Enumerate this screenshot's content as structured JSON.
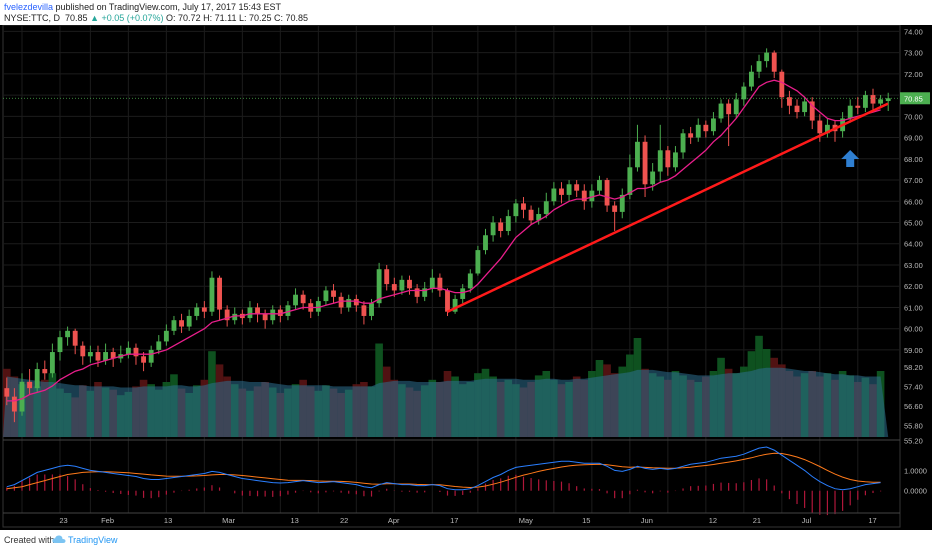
{
  "header": {
    "author": "fvelezdevilla",
    "published": "published on TradingView.com, July 17, 2017 15:43 EST",
    "symbol": "NYSE:TTC, D",
    "last": "70.85",
    "change": "▲ +0.05 (+0.07%)",
    "ohlc_open": "O: 70.72",
    "ohlc_high": "H: 71.11",
    "ohlc_low": "L: 70.25",
    "ohlc_close": "C: 70.85"
  },
  "footer": {
    "created_with": "Created with",
    "brand": "TradingView"
  },
  "colors": {
    "background": "#000000",
    "up_candle": "#4caf50",
    "down_candle": "#ef5350",
    "ma_line": "#e91e8c",
    "trendline": "#ff1a1a",
    "arrow": "#2f7fd1",
    "last_price_badge": "#4caf50",
    "macd_line": "#2a7fff",
    "signal_line": "#ff7a1a",
    "histogram": "#b0173a"
  },
  "chart_data": {
    "type": "candlestick",
    "price_axis_ticks": [
      "74.00",
      "73.00",
      "72.00",
      "71.00",
      "70.00",
      "69.00",
      "68.00",
      "67.00",
      "66.00",
      "65.00",
      "64.00",
      "63.00",
      "62.00",
      "61.00",
      "60.00",
      "59.00",
      "58.20",
      "57.40",
      "56.60",
      "55.80",
      "55.20"
    ],
    "last_price_label": "70.85",
    "macd_axis_ticks": [
      "1.0000",
      "0.0000"
    ],
    "x_ticks": [
      "23",
      "Feb",
      "13",
      "Mar",
      "13",
      "22",
      "Apr",
      "17",
      "May",
      "15",
      "Jun",
      "12",
      "21",
      "Jul",
      "17"
    ],
    "price_ylim": [
      54.9,
      74.3
    ],
    "candles": [
      [
        57.2,
        56.8,
        57.7,
        56.4
      ],
      [
        56.8,
        56.1,
        57.2,
        55.6
      ],
      [
        56.1,
        57.5,
        57.9,
        55.9
      ],
      [
        57.5,
        57.2,
        58.1,
        56.9
      ],
      [
        57.2,
        58.1,
        58.4,
        57.0
      ],
      [
        58.1,
        57.9,
        58.5,
        57.6
      ],
      [
        57.9,
        58.9,
        59.3,
        57.7
      ],
      [
        58.9,
        59.6,
        59.9,
        58.5
      ],
      [
        59.6,
        59.9,
        60.1,
        59.2
      ],
      [
        59.9,
        59.2,
        60.0,
        58.8
      ],
      [
        59.2,
        58.7,
        59.4,
        58.3
      ],
      [
        58.7,
        58.9,
        59.2,
        58.4
      ],
      [
        58.9,
        58.5,
        59.2,
        58.2
      ],
      [
        58.5,
        58.9,
        59.3,
        58.3
      ],
      [
        58.9,
        58.6,
        59.1,
        58.2
      ],
      [
        58.6,
        58.8,
        59.2,
        58.4
      ],
      [
        58.8,
        59.1,
        59.4,
        58.6
      ],
      [
        59.1,
        58.7,
        59.3,
        58.3
      ],
      [
        58.7,
        58.4,
        58.9,
        58.0
      ],
      [
        58.4,
        59.0,
        59.2,
        58.2
      ],
      [
        59.0,
        59.4,
        59.7,
        58.8
      ],
      [
        59.4,
        59.9,
        60.2,
        59.2
      ],
      [
        59.9,
        60.4,
        60.6,
        59.7
      ],
      [
        60.4,
        60.1,
        60.7,
        59.8
      ],
      [
        60.1,
        60.6,
        60.9,
        59.9
      ],
      [
        60.6,
        61.0,
        61.2,
        60.4
      ],
      [
        61.0,
        60.8,
        61.3,
        60.5
      ],
      [
        60.8,
        62.4,
        62.7,
        60.6
      ],
      [
        62.4,
        60.9,
        62.5,
        60.4
      ],
      [
        60.9,
        60.4,
        61.1,
        60.1
      ],
      [
        60.4,
        60.7,
        61.0,
        60.2
      ],
      [
        60.7,
        60.5,
        60.9,
        60.2
      ],
      [
        60.5,
        61.0,
        61.3,
        60.3
      ],
      [
        61.0,
        60.7,
        61.2,
        60.3
      ],
      [
        60.7,
        60.4,
        60.9,
        60.0
      ],
      [
        60.4,
        60.9,
        61.1,
        60.2
      ],
      [
        60.9,
        60.6,
        61.1,
        60.3
      ],
      [
        60.6,
        61.1,
        61.3,
        60.4
      ],
      [
        61.1,
        61.6,
        61.9,
        60.9
      ],
      [
        61.6,
        61.2,
        61.8,
        60.9
      ],
      [
        61.2,
        60.8,
        61.4,
        60.5
      ],
      [
        60.8,
        61.3,
        61.5,
        60.6
      ],
      [
        61.3,
        61.8,
        62.0,
        61.1
      ],
      [
        61.8,
        61.5,
        62.1,
        61.2
      ],
      [
        61.5,
        61.0,
        61.7,
        60.7
      ],
      [
        61.0,
        61.4,
        61.6,
        60.8
      ],
      [
        61.4,
        61.1,
        61.6,
        60.8
      ],
      [
        61.1,
        60.6,
        61.3,
        60.2
      ],
      [
        60.6,
        61.2,
        61.4,
        60.4
      ],
      [
        61.2,
        62.8,
        63.1,
        61.0
      ],
      [
        62.8,
        62.1,
        63.0,
        61.8
      ],
      [
        62.1,
        61.8,
        62.4,
        61.5
      ],
      [
        61.8,
        62.3,
        62.5,
        61.6
      ],
      [
        62.3,
        61.9,
        62.5,
        61.6
      ],
      [
        61.9,
        61.5,
        62.1,
        61.2
      ],
      [
        61.5,
        61.9,
        62.2,
        61.3
      ],
      [
        61.9,
        62.4,
        62.8,
        61.7
      ],
      [
        62.4,
        61.8,
        62.6,
        61.5
      ],
      [
        61.8,
        60.8,
        61.9,
        60.6
      ],
      [
        60.8,
        61.4,
        61.6,
        60.7
      ],
      [
        61.4,
        61.9,
        62.1,
        61.2
      ],
      [
        61.9,
        62.6,
        62.8,
        61.7
      ],
      [
        62.6,
        63.7,
        63.9,
        62.5
      ],
      [
        63.7,
        64.4,
        64.7,
        63.5
      ],
      [
        64.4,
        65.0,
        65.3,
        64.1
      ],
      [
        65.0,
        64.6,
        65.2,
        64.3
      ],
      [
        64.6,
        65.3,
        65.6,
        64.4
      ],
      [
        65.3,
        65.9,
        66.1,
        65.0
      ],
      [
        65.9,
        65.6,
        66.2,
        65.2
      ],
      [
        65.6,
        65.1,
        65.8,
        64.9
      ],
      [
        65.1,
        65.4,
        65.7,
        64.9
      ],
      [
        65.4,
        66.0,
        66.4,
        65.2
      ],
      [
        66.0,
        66.6,
        66.9,
        65.8
      ],
      [
        66.6,
        66.3,
        66.9,
        65.9
      ],
      [
        66.3,
        66.8,
        67.0,
        66.0
      ],
      [
        66.8,
        66.5,
        67.0,
        66.2
      ],
      [
        66.5,
        66.0,
        66.8,
        65.6
      ],
      [
        66.0,
        66.5,
        66.8,
        65.7
      ],
      [
        66.5,
        67.0,
        67.2,
        66.3
      ],
      [
        67.0,
        65.8,
        67.1,
        65.5
      ],
      [
        65.8,
        65.5,
        66.0,
        64.6
      ],
      [
        65.5,
        66.3,
        66.6,
        65.2
      ],
      [
        66.3,
        67.6,
        68.2,
        66.1
      ],
      [
        67.6,
        68.8,
        69.6,
        67.4
      ],
      [
        68.8,
        66.8,
        69.1,
        66.2
      ],
      [
        66.8,
        67.4,
        67.8,
        66.5
      ],
      [
        67.4,
        68.4,
        69.6,
        66.9
      ],
      [
        68.4,
        67.6,
        68.6,
        67.2
      ],
      [
        67.6,
        68.3,
        68.6,
        67.4
      ],
      [
        68.3,
        69.2,
        69.4,
        68.0
      ],
      [
        69.2,
        69.0,
        69.5,
        68.7
      ],
      [
        69.0,
        69.6,
        69.9,
        68.8
      ],
      [
        69.6,
        69.3,
        69.8,
        69.0
      ],
      [
        69.3,
        69.9,
        70.2,
        69.1
      ],
      [
        69.9,
        70.6,
        70.8,
        69.7
      ],
      [
        70.6,
        70.1,
        70.8,
        68.6
      ],
      [
        70.1,
        70.8,
        71.1,
        69.9
      ],
      [
        70.8,
        71.4,
        71.6,
        70.5
      ],
      [
        71.4,
        72.1,
        72.4,
        71.2
      ],
      [
        72.1,
        72.6,
        72.9,
        71.8
      ],
      [
        72.6,
        73.0,
        73.2,
        72.3
      ],
      [
        73.0,
        72.1,
        73.1,
        71.8
      ],
      [
        72.1,
        70.9,
        72.2,
        70.4
      ],
      [
        70.9,
        70.5,
        71.2,
        70.1
      ],
      [
        70.5,
        70.2,
        70.8,
        69.9
      ],
      [
        70.2,
        70.7,
        70.9,
        70.0
      ],
      [
        70.7,
        69.8,
        70.9,
        69.4
      ],
      [
        69.8,
        69.2,
        70.1,
        68.8
      ],
      [
        69.2,
        69.6,
        69.9,
        69.0
      ],
      [
        69.6,
        69.3,
        69.8,
        68.8
      ],
      [
        69.3,
        69.9,
        70.2,
        69.0
      ],
      [
        69.9,
        70.5,
        70.8,
        69.7
      ],
      [
        70.5,
        70.4,
        70.9,
        70.1
      ],
      [
        70.4,
        71.0,
        71.2,
        70.2
      ],
      [
        71.0,
        70.6,
        71.3,
        70.3
      ],
      [
        70.6,
        70.8,
        71.0,
        70.4
      ],
      [
        70.72,
        70.85,
        71.11,
        70.25
      ]
    ],
    "ma": [
      56.6,
      56.6,
      56.7,
      56.9,
      57.0,
      57.1,
      57.3,
      57.6,
      57.8,
      58.0,
      58.1,
      58.3,
      58.4,
      58.5,
      58.6,
      58.7,
      58.8,
      58.8,
      58.8,
      58.8,
      58.9,
      59.0,
      59.2,
      59.4,
      59.6,
      59.8,
      60.0,
      60.3,
      60.4,
      60.5,
      60.6,
      60.6,
      60.7,
      60.7,
      60.7,
      60.7,
      60.7,
      60.8,
      60.9,
      61.0,
      61.0,
      61.0,
      61.1,
      61.2,
      61.3,
      61.3,
      61.3,
      61.2,
      61.2,
      61.4,
      61.5,
      61.6,
      61.7,
      61.8,
      61.8,
      61.8,
      61.9,
      61.9,
      61.8,
      61.7,
      61.7,
      61.8,
      62.1,
      62.5,
      62.9,
      63.3,
      63.8,
      64.3,
      64.6,
      64.9,
      65.1,
      65.3,
      65.6,
      65.8,
      66.0,
      66.1,
      66.1,
      66.2,
      66.3,
      66.2,
      66.1,
      66.2,
      66.4,
      66.6,
      66.6,
      66.7,
      66.9,
      67.0,
      67.2,
      67.5,
      67.8,
      68.1,
      68.4,
      68.8,
      69.1,
      69.5,
      69.9,
      70.4,
      70.9,
      71.4,
      71.6,
      71.7,
      71.6,
      71.4,
      71.2,
      70.9,
      70.5,
      70.2,
      69.9,
      69.8,
      69.8,
      69.9,
      70.0,
      70.1,
      70.2,
      70.3
    ],
    "volume": [
      0.62,
      0.55,
      0.48,
      0.5,
      0.46,
      0.52,
      0.58,
      0.44,
      0.4,
      0.36,
      0.47,
      0.42,
      0.5,
      0.45,
      0.43,
      0.38,
      0.41,
      0.46,
      0.52,
      0.48,
      0.43,
      0.5,
      0.57,
      0.44,
      0.4,
      0.47,
      0.52,
      0.78,
      0.66,
      0.55,
      0.48,
      0.44,
      0.42,
      0.46,
      0.5,
      0.45,
      0.4,
      0.44,
      0.48,
      0.52,
      0.46,
      0.42,
      0.47,
      0.44,
      0.4,
      0.43,
      0.48,
      0.5,
      0.46,
      0.85,
      0.64,
      0.52,
      0.48,
      0.45,
      0.42,
      0.47,
      0.52,
      0.5,
      0.6,
      0.55,
      0.48,
      0.5,
      0.58,
      0.62,
      0.55,
      0.5,
      0.52,
      0.48,
      0.45,
      0.5,
      0.56,
      0.6,
      0.52,
      0.48,
      0.5,
      0.55,
      0.52,
      0.6,
      0.7,
      0.66,
      0.58,
      0.64,
      0.75,
      0.9,
      0.62,
      0.58,
      0.55,
      0.52,
      0.6,
      0.56,
      0.52,
      0.5,
      0.55,
      0.6,
      0.72,
      0.62,
      0.58,
      0.64,
      0.78,
      0.92,
      0.8,
      0.72,
      0.66,
      0.6,
      0.55,
      0.58,
      0.6,
      0.55,
      0.58,
      0.52,
      0.6,
      0.56,
      0.5,
      0.54,
      0.48,
      0.6
    ],
    "volume_ma": [
      0.55,
      0.54,
      0.53,
      0.52,
      0.51,
      0.5,
      0.5,
      0.49,
      0.48,
      0.47,
      0.47,
      0.46,
      0.46,
      0.46,
      0.46,
      0.45,
      0.45,
      0.45,
      0.46,
      0.46,
      0.46,
      0.46,
      0.47,
      0.47,
      0.46,
      0.46,
      0.47,
      0.49,
      0.5,
      0.51,
      0.51,
      0.51,
      0.5,
      0.5,
      0.5,
      0.49,
      0.48,
      0.47,
      0.47,
      0.47,
      0.47,
      0.47,
      0.47,
      0.46,
      0.46,
      0.46,
      0.46,
      0.46,
      0.46,
      0.49,
      0.5,
      0.51,
      0.51,
      0.51,
      0.5,
      0.5,
      0.5,
      0.5,
      0.51,
      0.51,
      0.51,
      0.51,
      0.52,
      0.53,
      0.53,
      0.53,
      0.53,
      0.53,
      0.52,
      0.52,
      0.52,
      0.53,
      0.53,
      0.52,
      0.52,
      0.53,
      0.53,
      0.54,
      0.55,
      0.56,
      0.57,
      0.58,
      0.59,
      0.61,
      0.61,
      0.61,
      0.6,
      0.59,
      0.59,
      0.58,
      0.57,
      0.56,
      0.56,
      0.56,
      0.57,
      0.58,
      0.58,
      0.59,
      0.6,
      0.62,
      0.63,
      0.63,
      0.63,
      0.62,
      0.61,
      0.6,
      0.6,
      0.59,
      0.58,
      0.57,
      0.57,
      0.56,
      0.56,
      0.55,
      0.55,
      0.55
    ],
    "macd": [
      0.2,
      0.3,
      0.5,
      0.7,
      0.9,
      1.0,
      1.1,
      1.2,
      1.25,
      1.2,
      1.1,
      1.0,
      0.95,
      0.9,
      0.85,
      0.8,
      0.75,
      0.7,
      0.6,
      0.55,
      0.55,
      0.6,
      0.65,
      0.7,
      0.75,
      0.8,
      0.85,
      0.95,
      0.9,
      0.8,
      0.7,
      0.6,
      0.55,
      0.5,
      0.45,
      0.4,
      0.38,
      0.4,
      0.45,
      0.5,
      0.45,
      0.4,
      0.42,
      0.45,
      0.4,
      0.35,
      0.3,
      0.2,
      0.15,
      0.3,
      0.4,
      0.35,
      0.3,
      0.3,
      0.25,
      0.25,
      0.3,
      0.25,
      0.1,
      0.05,
      0.05,
      0.1,
      0.25,
      0.45,
      0.65,
      0.8,
      1.0,
      1.15,
      1.2,
      1.25,
      1.3,
      1.35,
      1.4,
      1.45,
      1.45,
      1.4,
      1.35,
      1.35,
      1.35,
      1.2,
      1.0,
      0.95,
      1.05,
      1.2,
      1.1,
      1.05,
      1.1,
      1.05,
      1.1,
      1.2,
      1.3,
      1.35,
      1.4,
      1.5,
      1.6,
      1.65,
      1.7,
      1.8,
      1.95,
      2.1,
      2.15,
      2.0,
      1.75,
      1.5,
      1.25,
      1.0,
      0.7,
      0.45,
      0.25,
      0.1,
      0.05,
      0.1,
      0.2,
      0.3,
      0.35,
      0.4
    ],
    "macd_signal": [
      0.1,
      0.15,
      0.2,
      0.3,
      0.4,
      0.5,
      0.6,
      0.7,
      0.8,
      0.85,
      0.9,
      0.92,
      0.93,
      0.93,
      0.92,
      0.9,
      0.88,
      0.85,
      0.82,
      0.78,
      0.75,
      0.72,
      0.71,
      0.71,
      0.72,
      0.73,
      0.75,
      0.78,
      0.8,
      0.8,
      0.78,
      0.75,
      0.71,
      0.67,
      0.63,
      0.59,
      0.55,
      0.52,
      0.51,
      0.51,
      0.5,
      0.48,
      0.47,
      0.47,
      0.46,
      0.44,
      0.41,
      0.37,
      0.33,
      0.32,
      0.34,
      0.34,
      0.33,
      0.33,
      0.31,
      0.3,
      0.3,
      0.29,
      0.25,
      0.21,
      0.18,
      0.16,
      0.18,
      0.23,
      0.32,
      0.42,
      0.54,
      0.66,
      0.77,
      0.86,
      0.95,
      1.03,
      1.1,
      1.17,
      1.22,
      1.26,
      1.28,
      1.29,
      1.3,
      1.28,
      1.23,
      1.18,
      1.16,
      1.17,
      1.15,
      1.13,
      1.12,
      1.11,
      1.11,
      1.13,
      1.16,
      1.2,
      1.24,
      1.29,
      1.35,
      1.41,
      1.47,
      1.54,
      1.62,
      1.72,
      1.8,
      1.84,
      1.83,
      1.76,
      1.66,
      1.53,
      1.37,
      1.19,
      1.0,
      0.82,
      0.67,
      0.55,
      0.48,
      0.44,
      0.42,
      0.42
    ]
  }
}
